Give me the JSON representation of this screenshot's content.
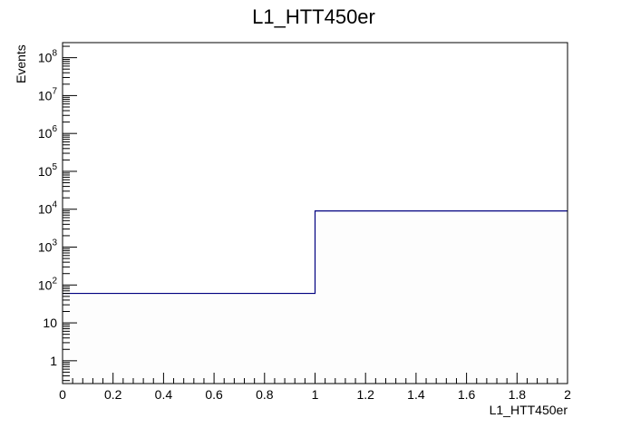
{
  "chart_data": {
    "type": "bar",
    "title": "L1_HTT450er",
    "xlabel": "L1_HTT450er",
    "ylabel": "Events",
    "xlim": [
      0,
      2
    ],
    "ylog": true,
    "ylim": [
      0.25,
      250000000
    ],
    "x_ticks": [
      "0",
      "0.2",
      "0.4",
      "0.6",
      "0.8",
      "1",
      "1.2",
      "1.4",
      "1.6",
      "1.8",
      "2"
    ],
    "y_ticks": [
      {
        "base": "1",
        "exp": ""
      },
      {
        "base": "10",
        "exp": ""
      },
      {
        "base": "10",
        "exp": "2"
      },
      {
        "base": "10",
        "exp": "3"
      },
      {
        "base": "10",
        "exp": "4"
      },
      {
        "base": "10",
        "exp": "5"
      },
      {
        "base": "10",
        "exp": "6"
      },
      {
        "base": "10",
        "exp": "7"
      },
      {
        "base": "10",
        "exp": "8"
      }
    ],
    "bins": [
      {
        "x_low": 0,
        "x_high": 1,
        "value": 60
      },
      {
        "x_low": 1,
        "x_high": 2,
        "value": 9000
      }
    ],
    "line_color": "#000080",
    "fill_color": "#fdfdfd",
    "grid": false,
    "legend": "none"
  }
}
